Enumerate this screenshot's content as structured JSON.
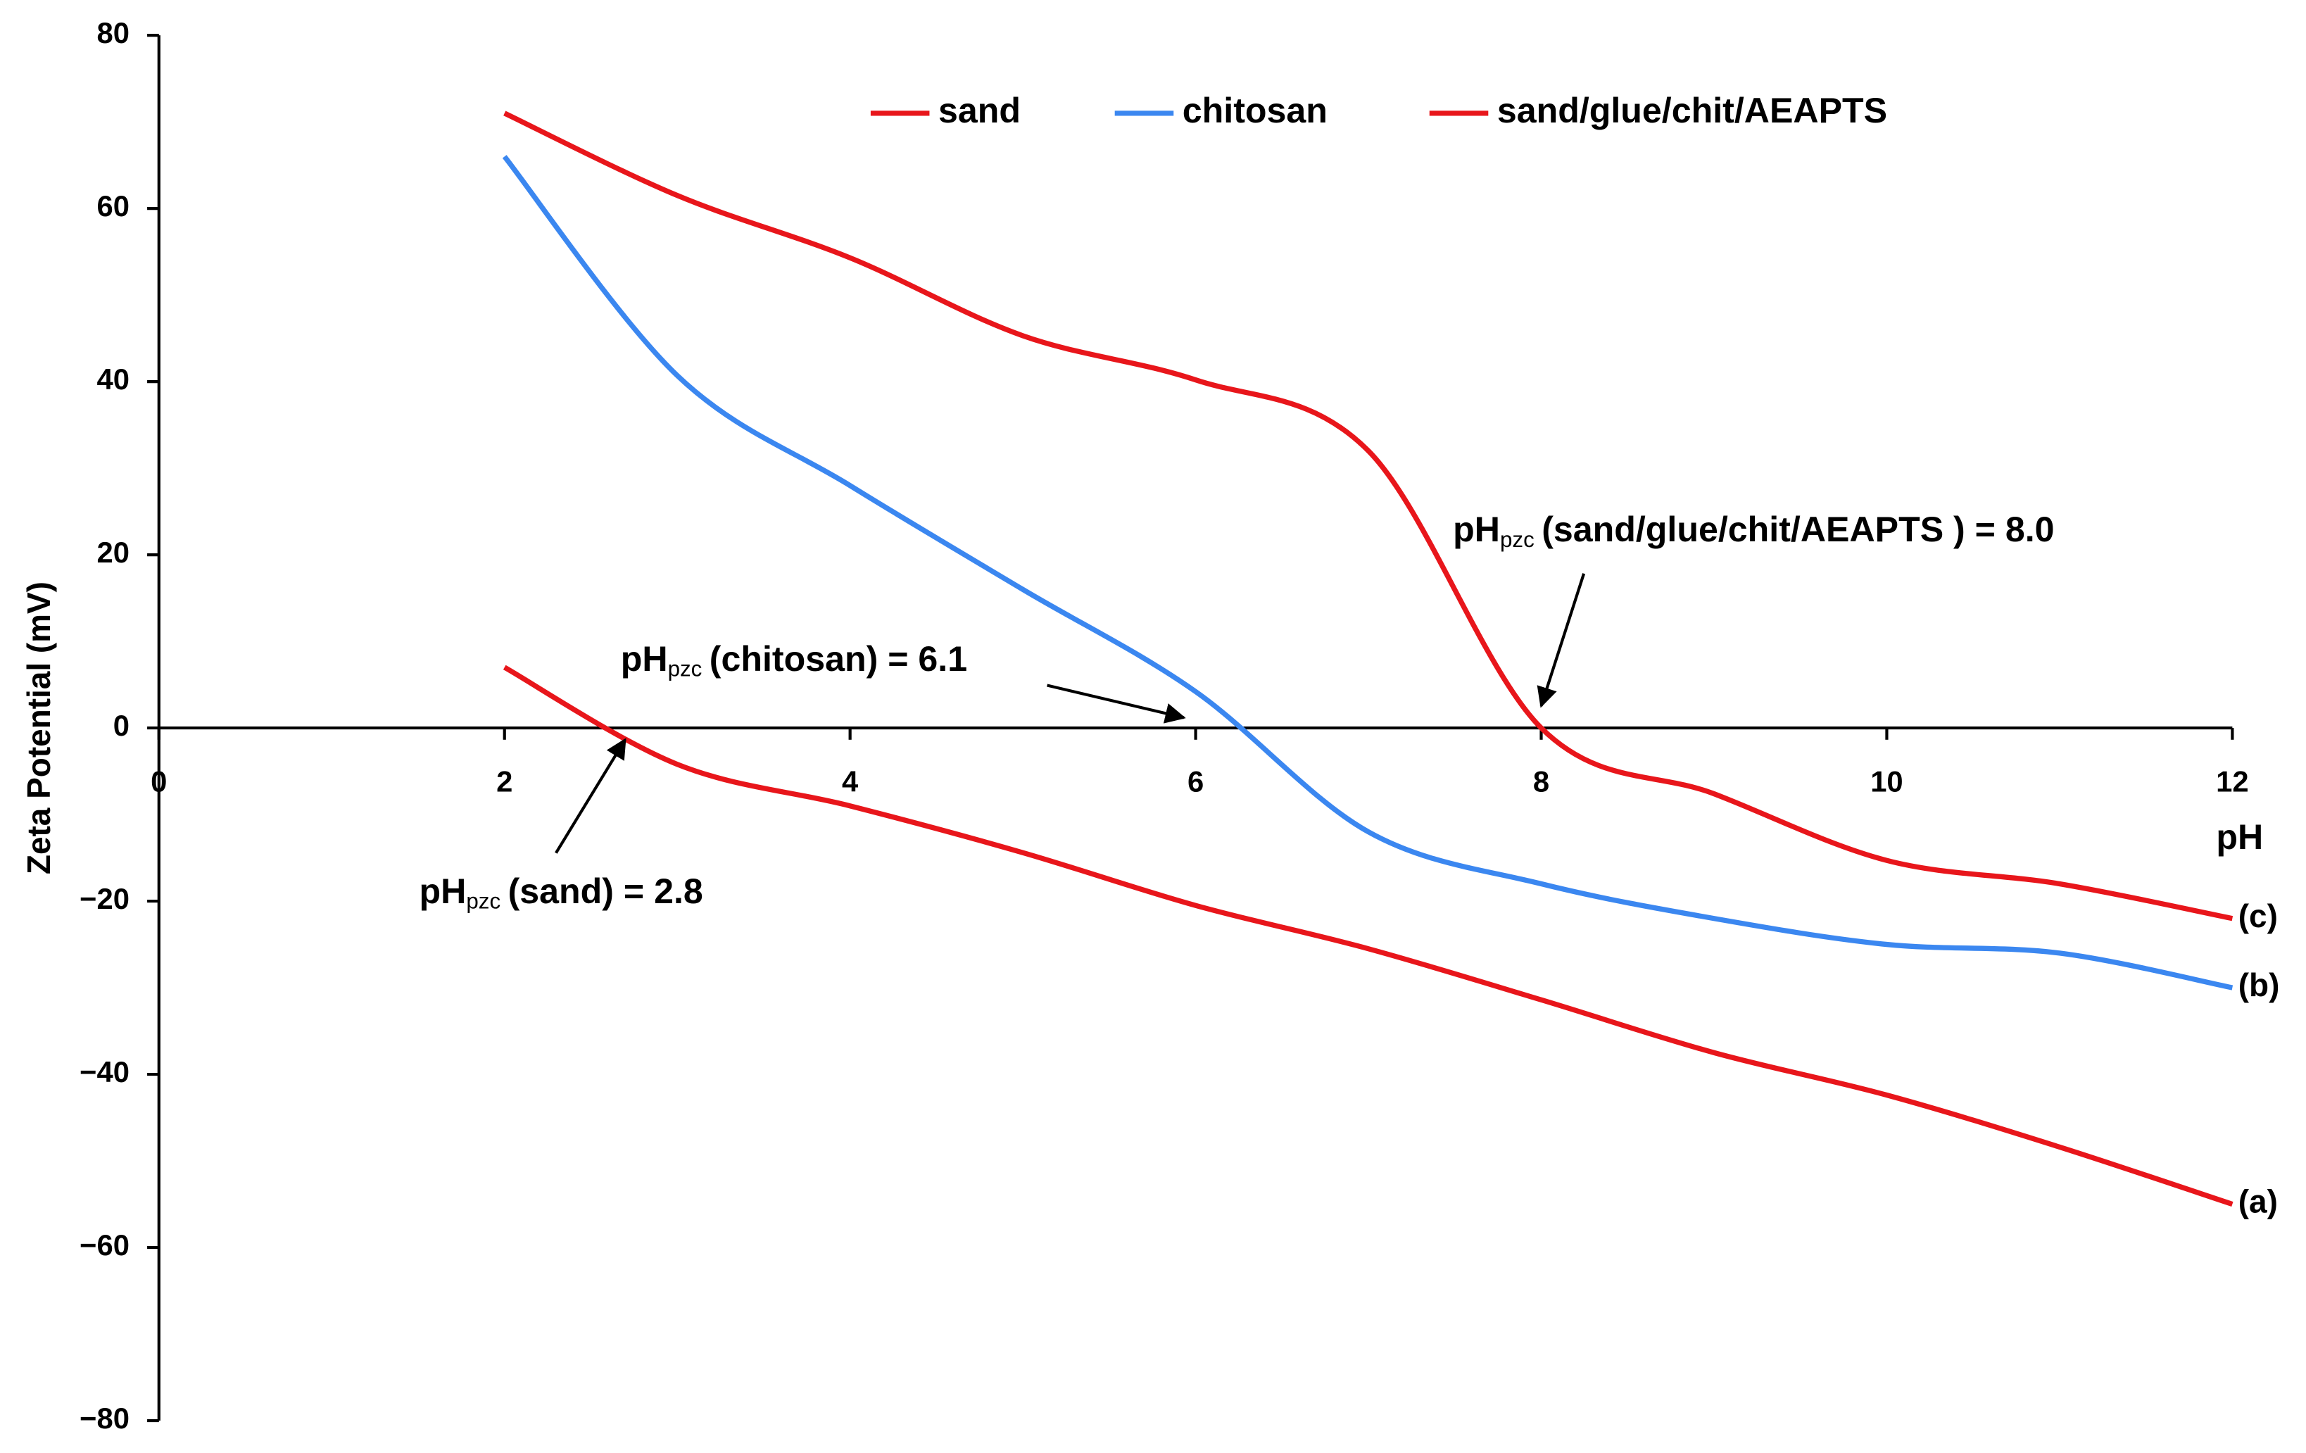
{
  "chart_data": {
    "type": "line",
    "x_label": "pH",
    "y_label": "Zeta Potential (mV)",
    "x": [
      2,
      3,
      4,
      5,
      6,
      7,
      8,
      9,
      10,
      11,
      12
    ],
    "series": [
      {
        "name": "sand",
        "color": "#e8161b",
        "label": "(a)",
        "values": [
          7,
          -4.2,
          -9,
          -14.4,
          -20.5,
          -25.5,
          -31.4,
          -37.5,
          -42.4,
          -48.4,
          -55
        ]
      },
      {
        "name": "chitosan",
        "color": "#3b87f0",
        "label": "(b)",
        "values": [
          66,
          40.7,
          28,
          16,
          4.2,
          -12,
          -18,
          -22,
          -25,
          -26,
          -30
        ]
      },
      {
        "name": "sand/glue/chit/AEAPTS",
        "color": "#e8161b",
        "label": "(c)",
        "values": [
          71,
          61.5,
          54.3,
          45.3,
          40.2,
          32,
          0,
          -7.6,
          -15.3,
          -18,
          -22
        ]
      }
    ],
    "xlim": [
      0,
      12
    ],
    "ylim": [
      -80,
      80
    ],
    "xticks": [
      0,
      2,
      4,
      6,
      8,
      10,
      12
    ],
    "yticks": [
      {
        "value": -80,
        "label": "−80"
      },
      {
        "value": -60,
        "label": "−60"
      },
      {
        "value": -40,
        "label": "−40"
      },
      {
        "value": -20,
        "label": "−20"
      },
      0,
      20,
      40,
      60,
      80
    ],
    "smooth": true,
    "legend": "top",
    "annotations": [
      {
        "base": "pH",
        "sub": "pzc",
        "text": "(sand) = 2.8"
      },
      {
        "base": "pH",
        "sub": "pzc",
        "text": "(chitosan) = 6.1"
      },
      {
        "base": "pH",
        "sub": "pzc",
        "text": "(sand/glue/chit/AEAPTS ) = 8.0"
      }
    ]
  }
}
